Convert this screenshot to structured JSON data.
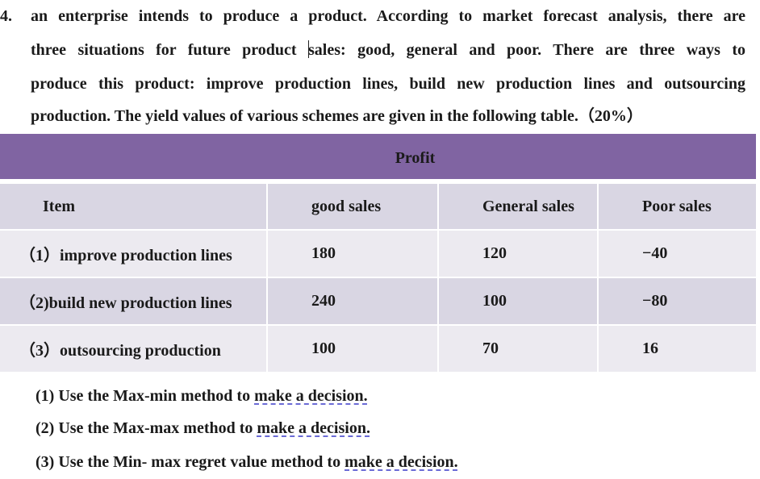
{
  "question": {
    "number": "4.",
    "lines": [
      "an enterprise intends to produce a product. According to market forecast analysis, there are",
      "three situations for future product ",
      "sales: good, general and poor. There are three ways to",
      "produce this product: improve production lines, build new production lines and outsourcing",
      "production. The yield values of various schemes are given in the following table.（20%）"
    ]
  },
  "table": {
    "group_header": "Profit",
    "columns": [
      "Item",
      "good sales",
      "General sales",
      "Poor sales"
    ],
    "rows": [
      {
        "item": "（1）improve production lines",
        "good": "180",
        "general": "120",
        "poor": "−40"
      },
      {
        "item": "（2)build new production lines",
        "good": "240",
        "general": "100",
        "poor": "−80"
      },
      {
        "item": "（3）outsourcing production",
        "good": "100",
        "general": "70",
        "poor": "16"
      }
    ]
  },
  "tasks": [
    {
      "prefix": "(1) Use the Max-min method to ",
      "underlined": "make a decision."
    },
    {
      "prefix": "(2) Use the Max-max method to ",
      "underlined": "make a decision."
    },
    {
      "prefix": "(3) Use the Min- max regret value method to ",
      "underlined": "make a decision."
    }
  ],
  "colors": {
    "header_band": "#8064a2",
    "row_dark": "#d9d6e3",
    "row_light": "#eceaf0",
    "spellcheck_underline": "#6b6bd6"
  }
}
